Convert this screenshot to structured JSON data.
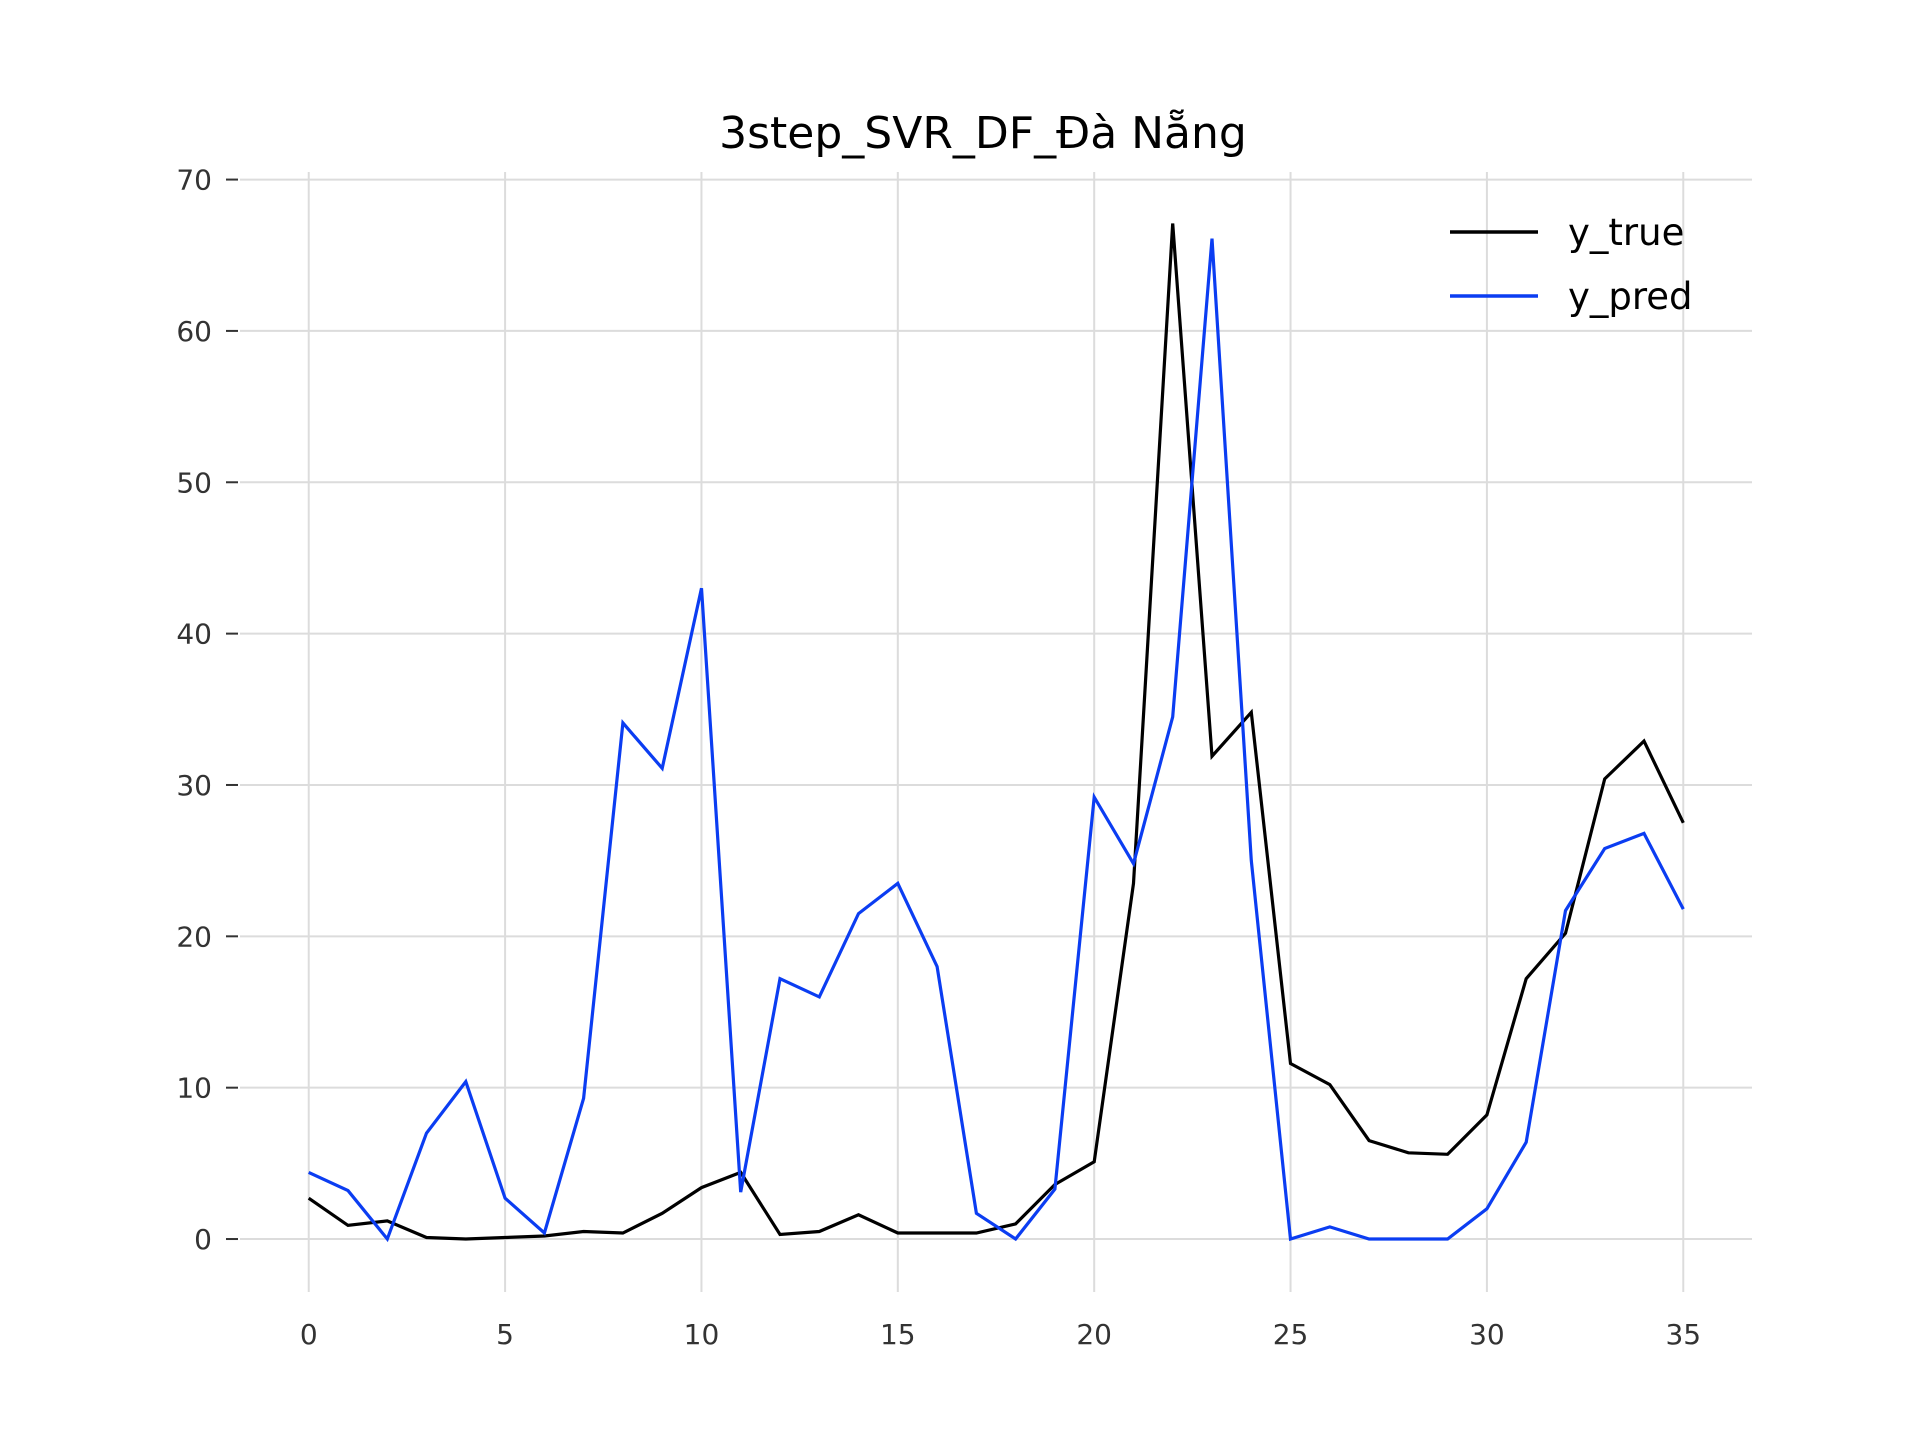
{
  "chart_data": {
    "type": "line",
    "title": "3step_SVR_DF_Đà Nẵng",
    "xlabel": "",
    "ylabel": "",
    "xlim": [
      -1.75,
      36.75
    ],
    "ylim": [
      -3.5,
      70.5
    ],
    "x_ticks": [
      0,
      5,
      10,
      15,
      20,
      25,
      30,
      35
    ],
    "y_ticks": [
      0,
      10,
      20,
      30,
      40,
      50,
      60,
      70
    ],
    "grid": true,
    "legend_position": "top-right",
    "x": [
      0,
      1,
      2,
      3,
      4,
      5,
      6,
      7,
      8,
      9,
      10,
      11,
      12,
      13,
      14,
      15,
      16,
      17,
      18,
      19,
      20,
      21,
      22,
      23,
      24,
      25,
      26,
      27,
      28,
      29,
      30,
      31,
      32,
      33,
      34,
      35
    ],
    "series": [
      {
        "name": "y_true",
        "color": "#000000",
        "values": [
          2.7,
          0.9,
          1.2,
          0.1,
          0.0,
          0.1,
          0.2,
          0.5,
          0.4,
          1.7,
          3.4,
          4.4,
          0.3,
          0.5,
          1.6,
          0.4,
          0.4,
          0.4,
          1.0,
          3.6,
          5.1,
          23.5,
          67.1,
          31.9,
          34.8,
          11.6,
          10.2,
          6.5,
          5.7,
          5.6,
          8.2,
          17.2,
          20.2,
          30.4,
          32.9,
          27.5
        ]
      },
      {
        "name": "y_pred",
        "color": "#0b3df2",
        "values": [
          4.4,
          3.2,
          0.0,
          7.0,
          10.4,
          2.7,
          0.4,
          9.3,
          34.1,
          31.1,
          43.0,
          3.1,
          17.2,
          16.0,
          21.5,
          23.5,
          18.0,
          1.7,
          0.0,
          3.3,
          29.2,
          24.8,
          34.5,
          66.1,
          25.0,
          0.0,
          0.8,
          0.0,
          0.0,
          0.0,
          2.0,
          6.4,
          21.7,
          25.8,
          26.8,
          21.8
        ]
      }
    ]
  },
  "style": {
    "grid_color": "#dcdcdc",
    "tick_color": "#333333"
  }
}
